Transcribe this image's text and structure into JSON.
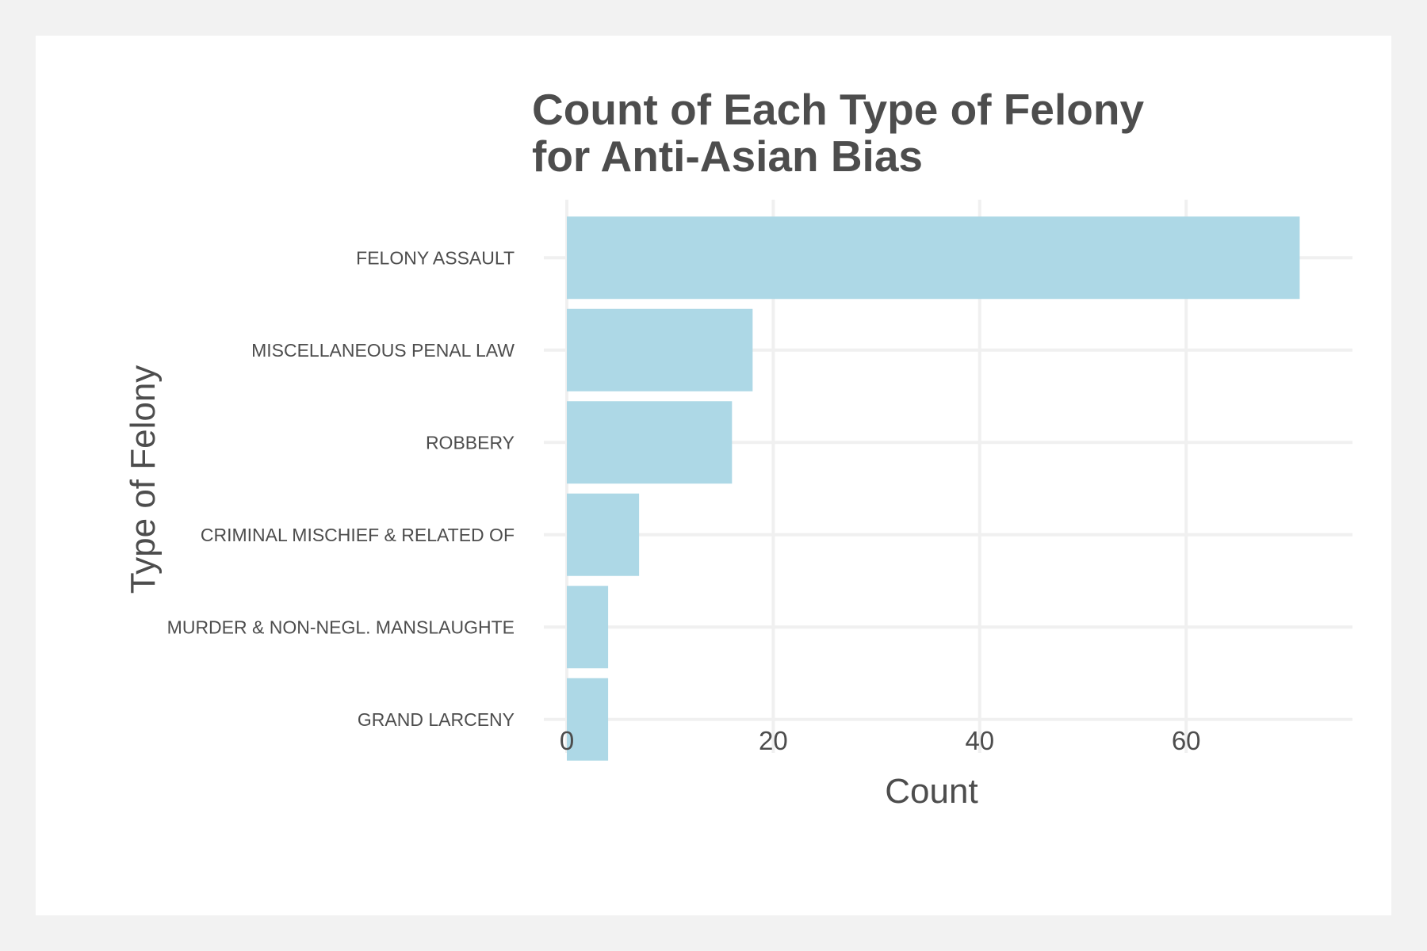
{
  "chart_data": {
    "type": "bar",
    "orientation": "horizontal",
    "title_lines": [
      "Count of Each Type of Felony",
      "for Anti-Asian Bias"
    ],
    "xlabel": "Count",
    "ylabel": "Type of Felony",
    "categories": [
      "FELONY ASSAULT",
      "MISCELLANEOUS PENAL LAW",
      "ROBBERY",
      "CRIMINAL MISCHIEF & RELATED OF",
      "MURDER & NON-NEGL. MANSLAUGHTE",
      "GRAND LARCENY"
    ],
    "values": [
      71,
      18,
      16,
      7,
      4,
      4
    ],
    "xlim": [
      0,
      74.5
    ],
    "xticks": [
      0,
      20,
      40,
      60
    ],
    "grid": true,
    "legend": "none",
    "colors": {
      "bar": "#add8e6",
      "grid": "#f0f0f0",
      "text": "#4d4d4d",
      "background": "#ffffff",
      "outer_background": "#f2f2f2"
    }
  }
}
